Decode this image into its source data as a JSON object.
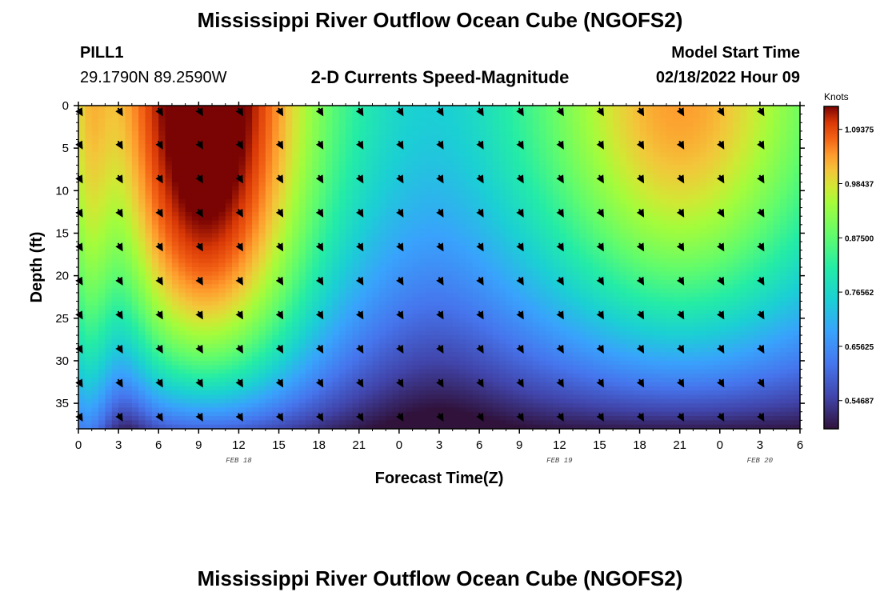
{
  "header": {
    "title": "Mississippi River Outflow Ocean Cube (NGOFS2)",
    "station": "PILL1",
    "coords": "29.1790N  89.2590W",
    "subtitle": "2-D Currents Speed-Magnitude",
    "model_label": "Model Start Time",
    "model_time": "02/18/2022 Hour 09"
  },
  "footer": {
    "title": "Mississippi River Outflow Ocean Cube (NGOFS2)"
  },
  "chart_data": {
    "type": "heatmap",
    "xlabel": "Forecast Time(Z)",
    "ylabel": "Depth (ft)",
    "x_range_hours": [
      0,
      54
    ],
    "y_range_ft": [
      0,
      38
    ],
    "x_ticks": [
      "0",
      "3",
      "6",
      "9",
      "12",
      "15",
      "18",
      "21",
      "0",
      "3",
      "6",
      "9",
      "12",
      "15",
      "18",
      "21",
      "0",
      "3",
      "6"
    ],
    "y_ticks": [
      0,
      5,
      10,
      15,
      20,
      25,
      30,
      35
    ],
    "date_labels": [
      {
        "text": "FEB 18",
        "hour": 12
      },
      {
        "text": "FEB 19",
        "hour": 36
      },
      {
        "text": "FEB 20",
        "hour": 51
      }
    ],
    "colorbar": {
      "unit": "Knots",
      "min": 0.49,
      "max": 1.14,
      "labels": [
        {
          "text": "1.09375",
          "value": 1.09375
        },
        {
          "text": "0.98437",
          "value": 0.984375
        },
        {
          "text": "0.87500",
          "value": 0.875
        },
        {
          "text": "0.76562",
          "value": 0.765625
        },
        {
          "text": "0.65625",
          "value": 0.65625
        },
        {
          "text": "0.54687",
          "value": 0.546875
        }
      ]
    },
    "arrows": {
      "hours": [
        0,
        3,
        6,
        9,
        12,
        15,
        18,
        21,
        24,
        27,
        30,
        33,
        36,
        39,
        42,
        45,
        48,
        51
      ],
      "depths_ft": [
        0.5,
        4.4,
        8.4,
        12.4,
        16.4,
        20.4,
        24.4,
        28.4,
        32.4,
        36.4
      ],
      "direction_deg": 150
    }
  }
}
